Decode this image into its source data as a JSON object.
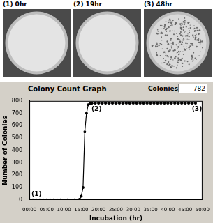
{
  "photos": [
    "(1) 0hr",
    "(2) 19hr",
    "(3) 48hr"
  ],
  "counter": {
    "label": "Colonies",
    "value": 782
  },
  "chart_data": {
    "type": "line",
    "title": "Colony Count Graph",
    "x_label": "Incubation (hr)",
    "y_label": "Number of Colonies",
    "x": [
      0,
      1,
      2,
      3,
      4,
      5,
      6,
      7,
      8,
      9,
      10,
      11,
      12,
      13,
      14,
      14.5,
      15,
      15.5,
      16,
      16.5,
      17,
      17.5,
      18,
      19,
      20,
      21,
      22,
      23,
      24,
      25,
      26,
      27,
      28,
      29,
      30,
      31,
      32,
      33,
      34,
      35,
      36,
      37,
      38,
      39,
      40,
      41,
      42,
      43,
      44,
      45,
      46,
      47,
      48
    ],
    "values": [
      0,
      0,
      0,
      0,
      0,
      0,
      0,
      0,
      0,
      0,
      0,
      0,
      0,
      0,
      0,
      5,
      30,
      100,
      550,
      700,
      770,
      778,
      780,
      782,
      782,
      782,
      782,
      782,
      782,
      782,
      782,
      782,
      782,
      782,
      782,
      782,
      782,
      782,
      782,
      782,
      782,
      782,
      782,
      782,
      782,
      782,
      782,
      782,
      782,
      782,
      782,
      782,
      782
    ],
    "color": "#000000",
    "marker": "circle",
    "line_style": "solid",
    "grid": false,
    "xlim": [
      0,
      50
    ],
    "xticks": [
      {
        "value": 0,
        "label": "00:00"
      },
      {
        "value": 5,
        "label": "05:00"
      },
      {
        "value": 10,
        "label": "10:00"
      },
      {
        "value": 15,
        "label": "15:00"
      },
      {
        "value": 20,
        "label": "20:00"
      },
      {
        "value": 25,
        "label": "25:00"
      },
      {
        "value": 30,
        "label": "30:00"
      },
      {
        "value": 35,
        "label": "35:00"
      },
      {
        "value": 40,
        "label": "40:00"
      },
      {
        "value": 45,
        "label": "45:00"
      },
      {
        "value": 50,
        "label": "50:00"
      }
    ],
    "ylim": [
      0,
      800
    ],
    "yticks": [
      0,
      100,
      200,
      300,
      400,
      500,
      600,
      700,
      800
    ],
    "annotations": [
      {
        "x": 0,
        "y": 0,
        "text": "(1)"
      },
      {
        "x": 19,
        "y": 782,
        "text": "(2)"
      },
      {
        "x": 48,
        "y": 782,
        "text": "(3)"
      }
    ]
  }
}
